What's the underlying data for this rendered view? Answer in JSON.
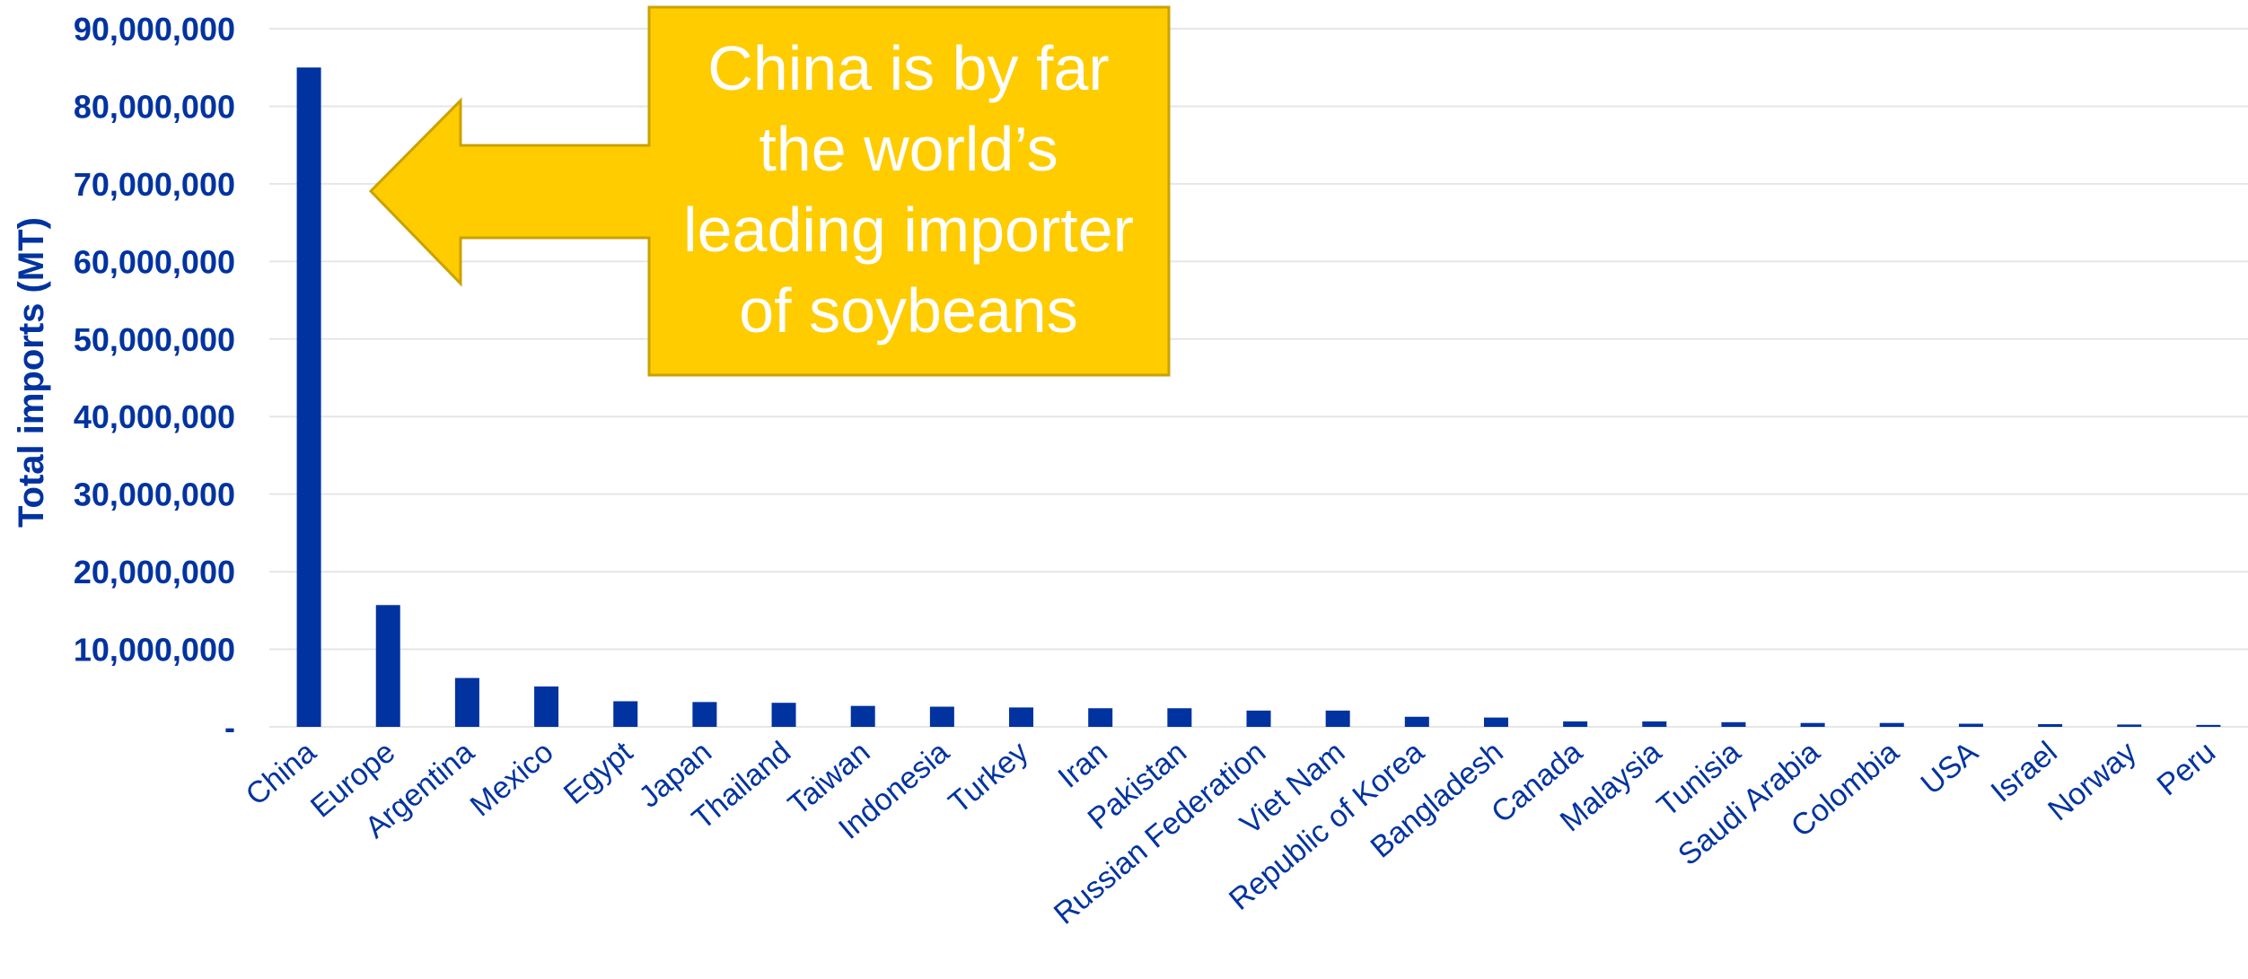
{
  "chart_data": {
    "type": "bar",
    "title": "",
    "xlabel": "",
    "ylabel": "Total imports (MT)",
    "ylim": [
      0,
      90000000
    ],
    "yticks": [
      0,
      10000000,
      20000000,
      30000000,
      40000000,
      50000000,
      60000000,
      70000000,
      80000000,
      90000000
    ],
    "ytick_labels": [
      "-",
      "10,000,000",
      "20,000,000",
      "30,000,000",
      "40,000,000",
      "50,000,000",
      "60,000,000",
      "70,000,000",
      "80,000,000",
      "90,000,000"
    ],
    "grid": true,
    "bar_color": "#0033a0",
    "categories": [
      "China",
      "Europe",
      "Argentina",
      "Mexico",
      "Egypt",
      "Japan",
      "Thailand",
      "Taiwan",
      "Indonesia",
      "Turkey",
      "Iran",
      "Pakistan",
      "Russian Federation",
      "Viet Nam",
      "Republic of Korea",
      "Bangladesh",
      "Canada",
      "Malaysia",
      "Tunisia",
      "Saudi Arabia",
      "Colombia",
      "USA",
      "Israel",
      "Norway",
      "Peru"
    ],
    "values": [
      85000000,
      15700000,
      6300000,
      5200000,
      3300000,
      3200000,
      3100000,
      2700000,
      2600000,
      2500000,
      2400000,
      2400000,
      2100000,
      2100000,
      1300000,
      1200000,
      700000,
      700000,
      600000,
      500000,
      500000,
      400000,
      350000,
      300000,
      250000
    ],
    "annotation": {
      "lines": [
        "China is by far",
        "the world’s",
        "leading importer",
        "of soybeans"
      ],
      "fill": "#ffcc00",
      "border": "#c9a200",
      "text_color": "#ffffff",
      "points_to": "China"
    }
  }
}
